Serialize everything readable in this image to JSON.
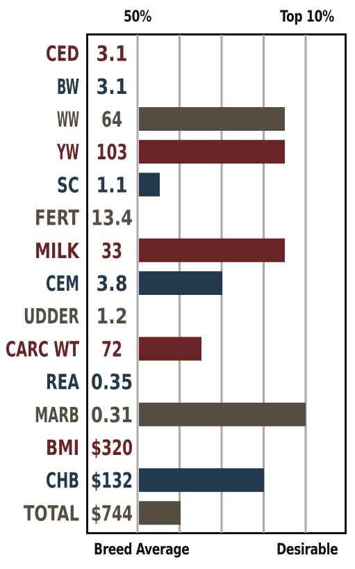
{
  "header": {
    "left_label": "50%",
    "right_label": "Top 10%"
  },
  "footer": {
    "left_label": "Breed Average",
    "right_label": "Desirable"
  },
  "colors": {
    "red": "#6b2426",
    "blue": "#223a4c",
    "brown": "#554d42",
    "grid": "#a9a9ae",
    "frame": "#111111"
  },
  "chart_data": {
    "type": "bar",
    "orientation": "horizontal",
    "categories": [
      "CED",
      "BW",
      "WW",
      "YW",
      "SC",
      "FERT",
      "MILK",
      "CEM",
      "UDDER",
      "CARC WT",
      "REA",
      "MARB",
      "BMI",
      "CHB",
      "TOTAL"
    ],
    "values_text": [
      "3.1",
      "3.1",
      "64",
      "103",
      "1.1",
      "13.4",
      "33",
      "3.8",
      "1.2",
      "72",
      "0.35",
      "0.31",
      "$320",
      "$132",
      "$744"
    ],
    "bar_fraction": [
      0,
      0,
      0.7,
      0.7,
      0.1,
      0,
      0.7,
      0.4,
      0,
      0.3,
      0,
      0.8,
      0,
      0.6,
      0.2
    ],
    "color_keys": [
      "red",
      "blue",
      "brown",
      "red",
      "blue",
      "brown",
      "red",
      "blue",
      "brown",
      "red",
      "blue",
      "brown",
      "red",
      "blue",
      "brown"
    ],
    "gridlines": 5,
    "xlabel_left": "Breed Average",
    "xlabel_right": "Desirable",
    "top_left": "50%",
    "top_right": "Top 10%"
  }
}
